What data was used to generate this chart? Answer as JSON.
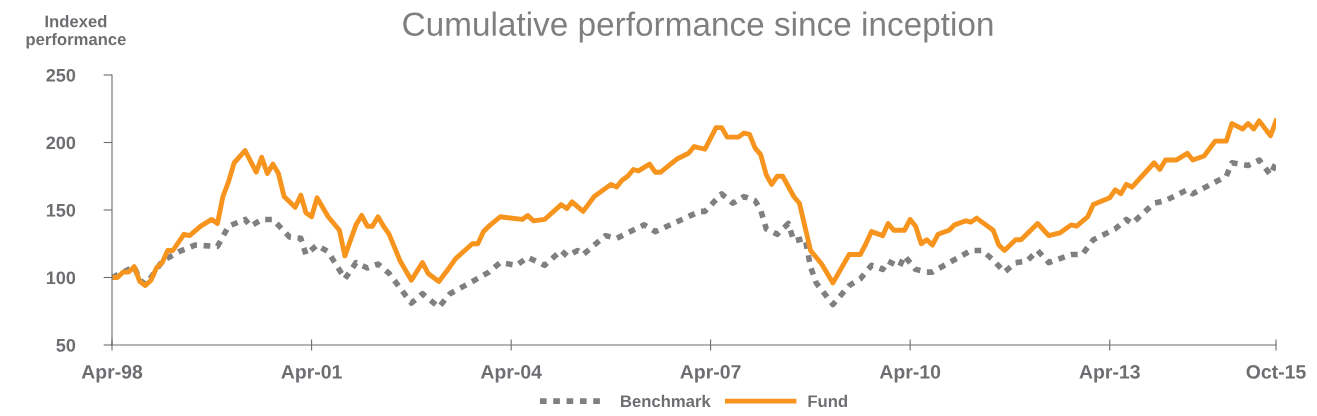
{
  "chart_data": {
    "type": "line",
    "title": "Cumulative performance since inception",
    "ylabel": "Indexed\nperformance",
    "ylim": [
      50,
      250
    ],
    "yticks": [
      50,
      100,
      150,
      200,
      250
    ],
    "xlim": [
      "1998-04",
      "2015-10"
    ],
    "xticks": [
      {
        "value": "1998-04",
        "label": "Apr-98"
      },
      {
        "value": "2001-04",
        "label": "Apr-01"
      },
      {
        "value": "2004-04",
        "label": "Apr-04"
      },
      {
        "value": "2007-04",
        "label": "Apr-07"
      },
      {
        "value": "2010-04",
        "label": "Apr-10"
      },
      {
        "value": "2013-04",
        "label": "Apr-13"
      },
      {
        "value": "2015-10",
        "label": "Oct-15"
      }
    ],
    "grid": false,
    "legend": "bottom",
    "marker": "none",
    "series": [
      {
        "name": "Benchmark",
        "color": "#808080",
        "line_style": "dotted",
        "x": [
          "1998-04",
          "1998-08",
          "1998-09",
          "1998-10",
          "1998-11",
          "1999-01",
          "1999-04",
          "1999-07",
          "1999-11",
          "2000-01",
          "2000-04",
          "2000-05",
          "2000-07",
          "2000-09",
          "2000-12",
          "2001-02",
          "2001-03",
          "2001-05",
          "2001-07",
          "2001-10",
          "2001-12",
          "2002-02",
          "2002-04",
          "2002-06",
          "2002-10",
          "2002-12",
          "2003-03",
          "2003-05",
          "2003-09",
          "2003-12",
          "2004-02",
          "2004-05",
          "2004-07",
          "2004-10",
          "2005-01",
          "2005-02",
          "2005-04",
          "2005-05",
          "2005-09",
          "2005-11",
          "2006-04",
          "2006-06",
          "2007-02",
          "2007-03",
          "2007-06",
          "2007-08",
          "2007-10",
          "2007-12",
          "2008-01",
          "2008-02",
          "2008-04",
          "2008-06",
          "2008-07",
          "2008-09",
          "2008-10",
          "2008-11",
          "2009-02",
          "2009-05",
          "2009-07",
          "2009-09",
          "2009-11",
          "2009-12",
          "2010-02",
          "2010-03",
          "2010-05",
          "2010-07",
          "2010-08",
          "2010-11",
          "2011-03",
          "2011-05",
          "2011-07",
          "2011-09",
          "2011-11",
          "2012-01",
          "2012-03",
          "2012-05",
          "2012-09",
          "2012-11",
          "2013-01",
          "2013-05",
          "2013-07",
          "2013-08",
          "2013-12",
          "2014-02",
          "2014-06",
          "2014-07",
          "2015-01",
          "2015-02",
          "2015-05",
          "2015-07",
          "2015-09",
          "2015-10"
        ],
        "values": [
          100,
          108,
          98,
          95,
          100,
          112,
          119,
          124,
          123,
          138,
          143,
          138,
          143,
          143,
          130,
          129,
          117,
          124,
          119,
          99,
          111,
          107,
          110,
          103,
          81,
          88,
          78,
          88,
          97,
          104,
          111,
          109,
          115,
          109,
          120,
          116,
          120,
          117,
          131,
          129,
          139,
          134,
          149,
          149,
          162,
          155,
          160,
          157,
          150,
          136,
          132,
          140,
          127,
          129,
          108,
          96,
          80,
          94,
          99,
          109,
          106,
          112,
          108,
          116,
          106,
          104,
          104,
          111,
          120,
          120,
          113,
          104,
          111,
          112,
          120,
          111,
          117,
          117,
          128,
          136,
          143,
          140,
          155,
          157,
          165,
          162,
          175,
          185,
          183,
          187,
          176,
          185
        ]
      },
      {
        "name": "Fund",
        "color": "#f7941d",
        "line_style": "solid",
        "x": [
          "1998-04",
          "1998-05",
          "1998-06",
          "1998-07",
          "1998-08",
          "1998-09",
          "1998-10",
          "1998-11",
          "1998-12",
          "1999-01",
          "1999-02",
          "1999-03",
          "1999-05",
          "1999-06",
          "1999-08",
          "1999-10",
          "1999-11",
          "1999-12",
          "2000-01",
          "2000-02",
          "2000-04",
          "2000-06",
          "2000-07",
          "2000-08",
          "2000-09",
          "2000-10",
          "2000-11",
          "2001-01",
          "2001-02",
          "2001-03",
          "2001-04",
          "2001-05",
          "2001-07",
          "2001-09",
          "2001-10",
          "2001-12",
          "2002-01",
          "2002-02",
          "2002-03",
          "2002-04",
          "2002-05",
          "2002-06",
          "2002-08",
          "2002-10",
          "2002-12",
          "2003-01",
          "2003-03",
          "2003-05",
          "2003-06",
          "2003-09",
          "2003-10",
          "2003-11",
          "2003-12",
          "2004-02",
          "2004-06",
          "2004-07",
          "2004-08",
          "2004-10",
          "2005-01",
          "2005-02",
          "2005-03",
          "2005-05",
          "2005-07",
          "2005-10",
          "2005-11",
          "2005-12",
          "2006-01",
          "2006-02",
          "2006-03",
          "2006-05",
          "2006-06",
          "2006-07",
          "2006-10",
          "2006-12",
          "2007-01",
          "2007-03",
          "2007-05",
          "2007-06",
          "2007-07",
          "2007-09",
          "2007-10",
          "2007-11",
          "2007-12",
          "2008-01",
          "2008-02",
          "2008-03",
          "2008-04",
          "2008-05",
          "2008-07",
          "2008-08",
          "2008-10",
          "2008-12",
          "2009-02",
          "2009-05",
          "2009-07",
          "2009-08",
          "2009-09",
          "2009-11",
          "2009-12",
          "2010-01",
          "2010-03",
          "2010-04",
          "2010-05",
          "2010-06",
          "2010-07",
          "2010-08",
          "2010-09",
          "2010-11",
          "2010-12",
          "2011-02",
          "2011-03",
          "2011-04",
          "2011-07",
          "2011-08",
          "2011-09",
          "2011-11",
          "2011-12",
          "2012-03",
          "2012-05",
          "2012-07",
          "2012-09",
          "2012-10",
          "2012-12",
          "2013-01",
          "2013-04",
          "2013-05",
          "2013-06",
          "2013-07",
          "2013-08",
          "2013-12",
          "2014-01",
          "2014-02",
          "2014-04",
          "2014-06",
          "2014-07",
          "2014-09",
          "2014-11",
          "2015-01",
          "2015-02",
          "2015-04",
          "2015-05",
          "2015-06",
          "2015-07",
          "2015-09",
          "2015-10"
        ],
        "values": [
          100,
          100,
          104,
          104,
          108,
          97,
          94,
          98,
          107,
          111,
          120,
          120,
          132,
          131,
          138,
          143,
          140,
          160,
          171,
          185,
          194,
          178,
          189,
          177,
          184,
          177,
          160,
          152,
          161,
          148,
          145,
          159,
          145,
          135,
          116,
          139,
          146,
          138,
          138,
          145,
          138,
          132,
          112,
          98,
          111,
          103,
          97,
          108,
          114,
          125,
          125,
          134,
          138,
          145,
          143,
          146,
          142,
          143,
          154,
          151,
          156,
          149,
          160,
          169,
          167,
          172,
          175,
          180,
          179,
          184,
          178,
          178,
          188,
          192,
          197,
          195,
          211,
          211,
          204,
          204,
          207,
          206,
          196,
          191,
          176,
          169,
          175,
          175,
          160,
          155,
          120,
          110,
          96,
          117,
          117,
          125,
          134,
          131,
          140,
          135,
          135,
          143,
          138,
          125,
          128,
          124,
          132,
          135,
          139,
          142,
          141,
          144,
          135,
          124,
          120,
          128,
          128,
          140,
          131,
          133,
          139,
          138,
          145,
          154,
          159,
          165,
          162,
          169,
          167,
          185,
          180,
          187,
          187,
          192,
          187,
          190,
          201,
          201,
          214,
          210,
          214,
          210,
          216,
          205,
          216
        ]
      }
    ]
  }
}
